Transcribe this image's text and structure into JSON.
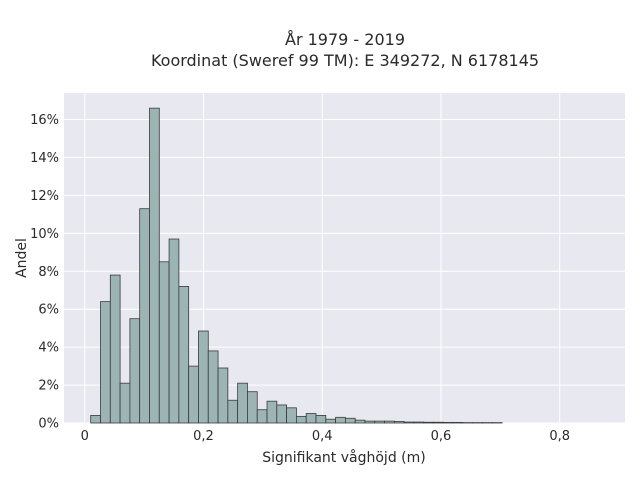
{
  "chart_data": {
    "type": "bar",
    "title": "År 1979 - 2019",
    "subtitle": "Koordinat (Sweref 99 TM): E 349272, N 6178145",
    "xlabel": "Signifikant våghöjd (m)",
    "ylabel": "Andel",
    "xlim": [
      -0.035,
      0.91
    ],
    "ylim": [
      0,
      17.4
    ],
    "x_ticks": [
      {
        "value": 0,
        "label": "0"
      },
      {
        "value": 0.2,
        "label": "0,2"
      },
      {
        "value": 0.4,
        "label": "0,4"
      },
      {
        "value": 0.6,
        "label": "0,6"
      },
      {
        "value": 0.8,
        "label": "0,8"
      }
    ],
    "y_ticks": [
      {
        "value": 0,
        "label": "0%"
      },
      {
        "value": 2,
        "label": "2%"
      },
      {
        "value": 4,
        "label": "4%"
      },
      {
        "value": 6,
        "label": "6%"
      },
      {
        "value": 8,
        "label": "8%"
      },
      {
        "value": 10,
        "label": "10%"
      },
      {
        "value": 12,
        "label": "12%"
      },
      {
        "value": 14,
        "label": "14%"
      },
      {
        "value": 16,
        "label": "16%"
      }
    ],
    "bin_width": 0.0165,
    "bin_start": 0.01,
    "values": [
      0.4,
      6.4,
      7.8,
      2.1,
      5.5,
      11.3,
      16.6,
      8.5,
      9.7,
      7.2,
      3.0,
      4.85,
      3.8,
      2.9,
      1.2,
      2.1,
      1.65,
      0.7,
      1.15,
      0.95,
      0.8,
      0.35,
      0.5,
      0.4,
      0.2,
      0.3,
      0.25,
      0.15,
      0.1,
      0.1,
      0.1,
      0.08,
      0.05,
      0.05,
      0.04,
      0.04,
      0.03,
      0.03,
      0.02,
      0.02,
      0.02,
      0.02
    ],
    "grid": true,
    "colors": {
      "bar_fill": "#9cb5b4",
      "bar_stroke": "#3a3a3a",
      "plot_background": "#e8e8f0",
      "grid": "#ffffff"
    }
  }
}
